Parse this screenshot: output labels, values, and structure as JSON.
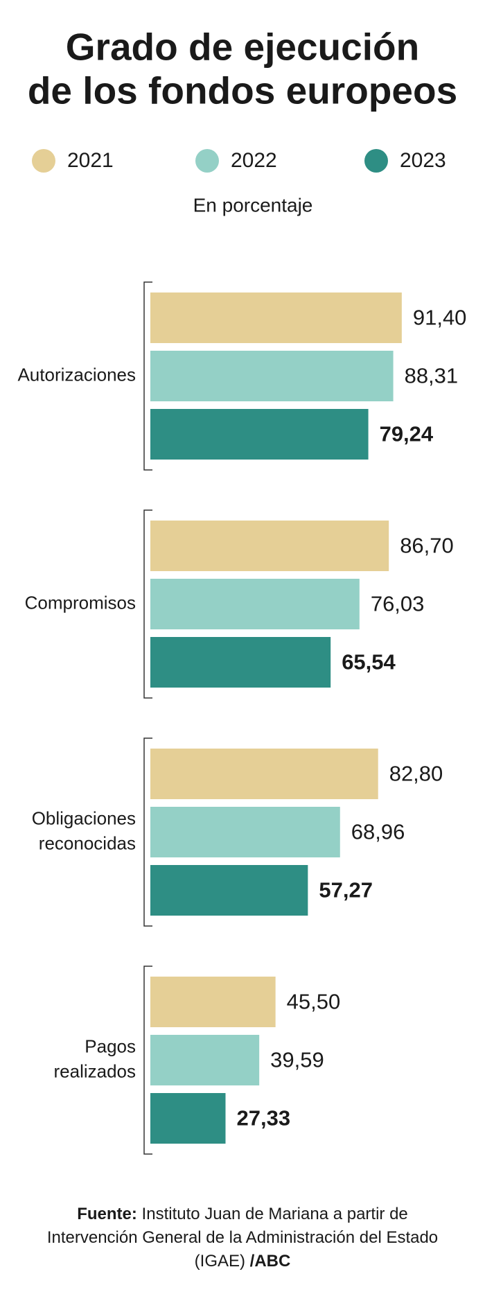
{
  "chart_data": {
    "type": "bar",
    "orientation": "horizontal",
    "title": [
      "Grado de ejecución",
      "de los fondos europeos"
    ],
    "subtitle": "En porcentaje",
    "categories": [
      "Autorizaciones",
      "Compromisos",
      "Obligaciones reconocidas",
      "Pagos realizados"
    ],
    "series": [
      {
        "name": "2021",
        "color": "#e5cf96",
        "values": [
          91.4,
          86.7,
          82.8,
          45.5
        ],
        "value_labels": [
          "91,40",
          "86,70",
          "82,80",
          "45,50"
        ]
      },
      {
        "name": "2022",
        "color": "#94d0c6",
        "values": [
          88.31,
          76.03,
          68.96,
          39.59
        ],
        "value_labels": [
          "88,31",
          "76,03",
          "68,96",
          "39,59"
        ]
      },
      {
        "name": "2023",
        "color": "#2e8e84",
        "values": [
          79.24,
          65.54,
          57.27,
          27.33
        ],
        "value_labels": [
          "79,24",
          "65,54",
          "57,27",
          "27,33"
        ]
      }
    ]
  },
  "source": {
    "label": "Fuente:",
    "text": "Instituto Juan de Mariana a partir de Intervención General de la Administración del Estado (IGAE)",
    "brand": "/ABC"
  }
}
